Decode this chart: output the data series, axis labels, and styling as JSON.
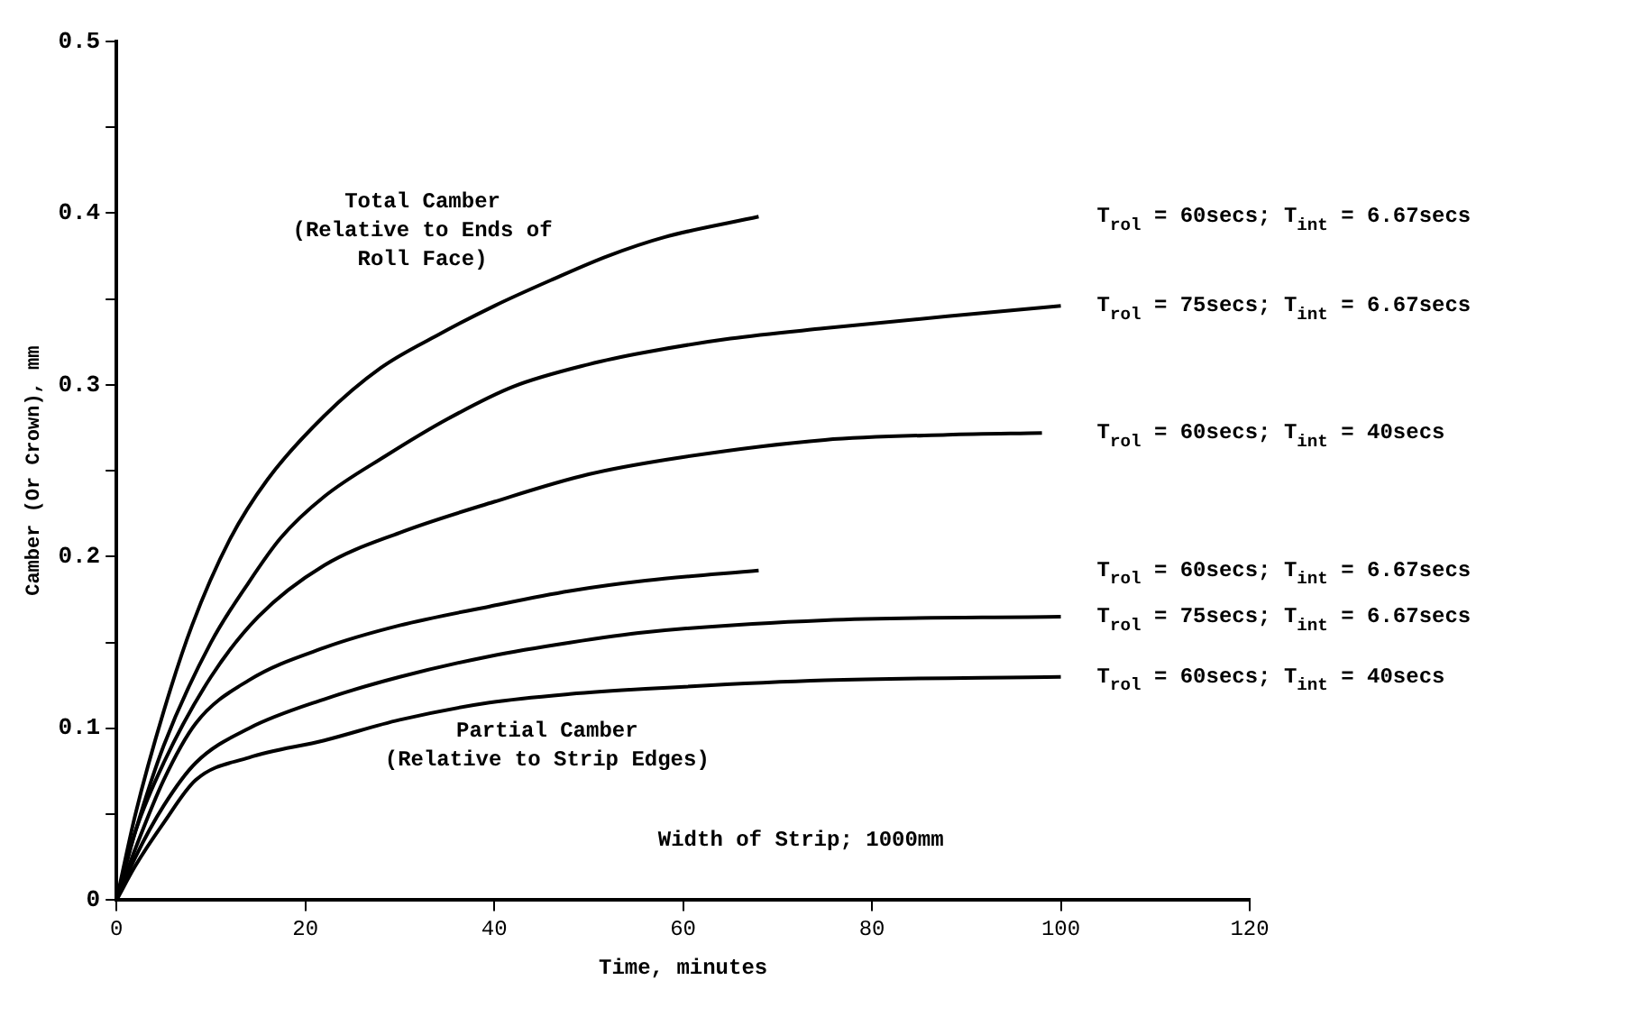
{
  "chart_data": {
    "type": "line",
    "xlabel": "Time, minutes",
    "ylabel": "Camber (Or Crown), mm",
    "xlim": [
      0,
      120
    ],
    "xticks": [
      0,
      20,
      40,
      60,
      80,
      100,
      120
    ],
    "ylim": [
      0,
      0.5
    ],
    "yticks": [
      0,
      {
        "value": 0.05,
        "label": null
      },
      0.1,
      {
        "value": 0.15,
        "label": null
      },
      0.2,
      {
        "value": 0.25,
        "label": null
      },
      0.3,
      {
        "value": 0.35,
        "label": null
      },
      0.4,
      {
        "value": 0.45,
        "label": null
      },
      0.5
    ],
    "grid": false,
    "legend": false,
    "series": [
      {
        "name": "T$_{rol}$ = 60secs; T$_{int}$ = 6.67secs",
        "color": "#000000",
        "x": [
          0,
          2,
          5,
          8,
          12,
          16,
          22,
          28,
          34,
          40,
          46,
          52,
          58,
          68
        ],
        "values": [
          0,
          0.05,
          0.11,
          0.16,
          0.21,
          0.245,
          0.282,
          0.31,
          0.329,
          0.346,
          0.361,
          0.375,
          0.386,
          0.398
        ]
      },
      {
        "name": "T$_{rol}$ = 75secs; T$_{int}$ = 6.67secs",
        "color": "#000000",
        "x": [
          0,
          2,
          5,
          10,
          14,
          17.4,
          22,
          28.6,
          35,
          42,
          50,
          56,
          65,
          75,
          88,
          100
        ],
        "values": [
          0,
          0.04,
          0.09,
          0.15,
          0.185,
          0.211,
          0.235,
          0.259,
          0.28,
          0.299,
          0.312,
          0.319,
          0.327,
          0.333,
          0.34,
          0.346
        ]
      },
      {
        "name": "T$_{rol}$ = 60secs; T$_{int}$ = 40secs",
        "color": "#000000",
        "x": [
          0,
          2,
          5,
          10,
          15,
          22,
          30,
          40,
          50,
          60,
          75,
          88,
          98
        ],
        "values": [
          0,
          0.04,
          0.08,
          0.13,
          0.165,
          0.195,
          0.214,
          0.232,
          0.248,
          0.258,
          0.268,
          0.271,
          0.272
        ]
      },
      {
        "name": "T$_{rol}$ = 60secs; T$_{int}$ = 6.67secs",
        "color": "#000000",
        "x": [
          0,
          2,
          5,
          8.4,
          14,
          22,
          30,
          39.5,
          48,
          56,
          68
        ],
        "values": [
          0,
          0.03,
          0.07,
          0.103,
          0.128,
          0.147,
          0.16,
          0.171,
          0.18,
          0.186,
          0.192
        ]
      },
      {
        "name": "T$_{rol}$ = 75secs; T$_{int}$ = 6.67secs",
        "color": "#000000",
        "x": [
          0,
          2,
          5,
          8.4,
          14,
          22,
          30,
          39.5,
          48,
          56,
          75,
          100
        ],
        "values": [
          0,
          0.025,
          0.055,
          0.08,
          0.1,
          0.117,
          0.13,
          0.142,
          0.15,
          0.156,
          0.163,
          0.165
        ]
      },
      {
        "name": "T$_{rol}$ = 60secs; T$_{int}$ = 40secs",
        "color": "#000000",
        "x": [
          0,
          2,
          5,
          8.4,
          14,
          22,
          30,
          39.5,
          48,
          56,
          75,
          100
        ],
        "values": [
          0,
          0.02,
          0.045,
          0.07,
          0.083,
          0.093,
          0.105,
          0.115,
          0.12,
          0.123,
          0.128,
          0.13
        ]
      }
    ],
    "annotations": [
      "Total Camber\n(Relative to Ends of\nRoll Face)",
      "Partial Camber\n(Relative to Strip Edges)",
      "Width of Strip; 1000mm"
    ]
  }
}
